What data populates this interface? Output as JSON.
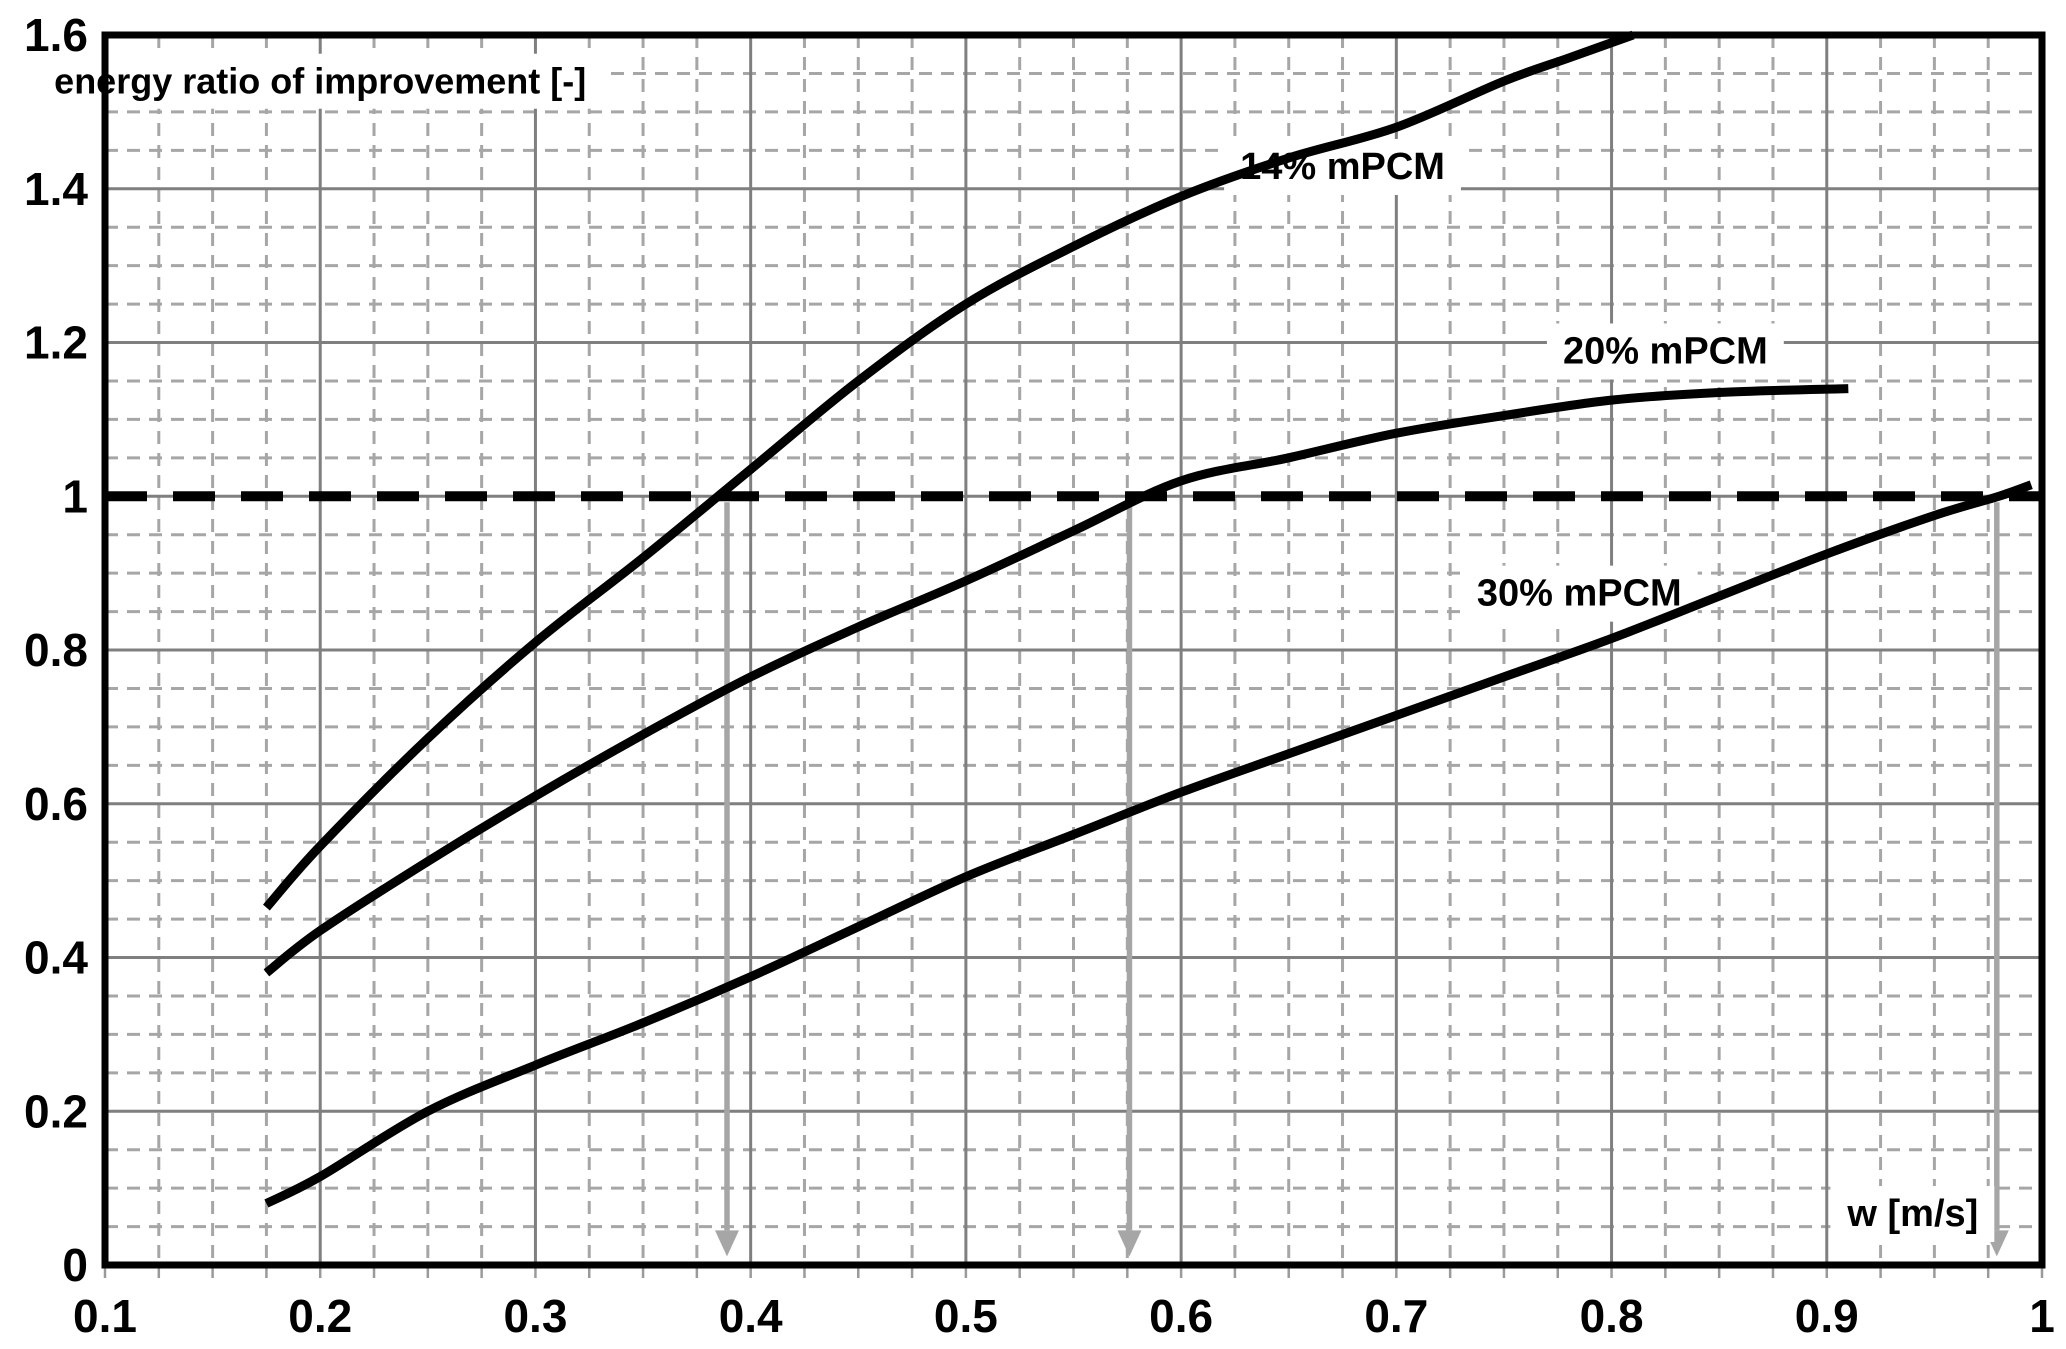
{
  "figure": {
    "background": "#ffffff"
  },
  "chart_data": {
    "type": "line",
    "title": "energy ratio of improvement [-]",
    "xlabel": "w [m/s]",
    "ylabel": "energy ratio of improvement [-]",
    "xlim": [
      0.1,
      1.0
    ],
    "ylim": [
      0,
      1.6
    ],
    "x_ticks": {
      "values": [
        0.1,
        0.2,
        0.3,
        0.4,
        0.5,
        0.6,
        0.7,
        0.8,
        0.9,
        1.0
      ],
      "labels": [
        "0.1",
        "0.2",
        "0.3",
        "0.4",
        "0.5",
        "0.6",
        "0.7",
        "0.8",
        "0.9",
        "1"
      ]
    },
    "y_ticks": {
      "values": [
        0,
        0.2,
        0.4,
        0.6,
        0.8,
        1.0,
        1.2,
        1.4,
        1.6
      ],
      "labels": [
        "0",
        "0.2",
        "0.4",
        "0.6",
        "0.8",
        "1",
        "1.2",
        "1.4",
        "1.6"
      ]
    },
    "grid": {
      "x_major_step": 0.1,
      "y_major_step": 0.2,
      "x_minor_step": 0.025,
      "y_minor_step": 0.05,
      "major_color": "#7f7f7f",
      "minor_color": "#a6a6a6",
      "border_color": "#000000"
    },
    "reference_line": {
      "y": 1.0,
      "color": "#000000",
      "style": "dashed"
    },
    "arrows": {
      "color": "#a6a6a6",
      "y_from": 1.0,
      "y_to": 0.045,
      "x_positions": [
        0.389,
        0.576,
        0.979
      ]
    },
    "title_pos": {
      "x": 0.2,
      "y": 1.54
    },
    "xlabel_pos": {
      "x": 0.94,
      "y": 0.068
    },
    "series": [
      {
        "name": "14% mPCM",
        "color": "#000000",
        "label_pos": {
          "x": 0.675,
          "y": 1.43
        },
        "points": [
          [
            0.175,
            0.465
          ],
          [
            0.2,
            0.545
          ],
          [
            0.25,
            0.685
          ],
          [
            0.3,
            0.81
          ],
          [
            0.35,
            0.92
          ],
          [
            0.4,
            1.035
          ],
          [
            0.45,
            1.15
          ],
          [
            0.5,
            1.25
          ],
          [
            0.55,
            1.325
          ],
          [
            0.6,
            1.39
          ],
          [
            0.65,
            1.44
          ],
          [
            0.7,
            1.48
          ],
          [
            0.75,
            1.54
          ],
          [
            0.78,
            1.57
          ],
          [
            0.81,
            1.6
          ]
        ]
      },
      {
        "name": "20% mPCM",
        "color": "#000000",
        "label_pos": {
          "x": 0.825,
          "y": 1.19
        },
        "points": [
          [
            0.175,
            0.38
          ],
          [
            0.2,
            0.435
          ],
          [
            0.25,
            0.525
          ],
          [
            0.3,
            0.61
          ],
          [
            0.35,
            0.69
          ],
          [
            0.4,
            0.765
          ],
          [
            0.45,
            0.83
          ],
          [
            0.5,
            0.89
          ],
          [
            0.55,
            0.955
          ],
          [
            0.6,
            1.02
          ],
          [
            0.65,
            1.05
          ],
          [
            0.7,
            1.082
          ],
          [
            0.75,
            1.105
          ],
          [
            0.8,
            1.125
          ],
          [
            0.85,
            1.135
          ],
          [
            0.91,
            1.14
          ]
        ]
      },
      {
        "name": "30% mPCM",
        "color": "#000000",
        "label_pos": {
          "x": 0.785,
          "y": 0.875
        },
        "points": [
          [
            0.175,
            0.08
          ],
          [
            0.2,
            0.115
          ],
          [
            0.25,
            0.2
          ],
          [
            0.3,
            0.26
          ],
          [
            0.35,
            0.315
          ],
          [
            0.4,
            0.375
          ],
          [
            0.45,
            0.44
          ],
          [
            0.5,
            0.505
          ],
          [
            0.55,
            0.56
          ],
          [
            0.6,
            0.615
          ],
          [
            0.65,
            0.665
          ],
          [
            0.7,
            0.715
          ],
          [
            0.75,
            0.765
          ],
          [
            0.8,
            0.815
          ],
          [
            0.85,
            0.87
          ],
          [
            0.9,
            0.925
          ],
          [
            0.95,
            0.975
          ],
          [
            0.98,
            1.0
          ],
          [
            0.995,
            1.015
          ]
        ]
      }
    ]
  }
}
